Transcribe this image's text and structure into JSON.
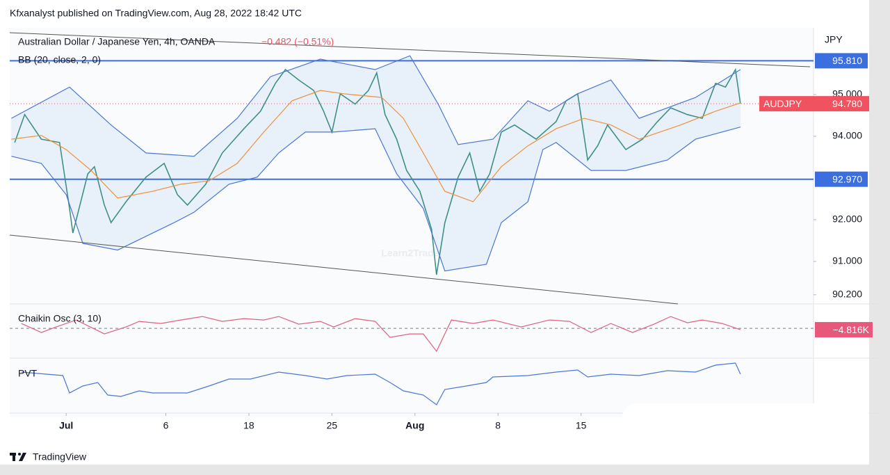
{
  "header": "Kfxanalyst published on TradingView.com, Aug 28, 2022 18:42 UTC",
  "footer": "TradingView",
  "chart_data": [
    {
      "type": "line",
      "title": "Australian Dollar / Japanese Yen, 4h, OANDA",
      "change": "−0.482 (−0.51%)",
      "indicator": "BB (20, close, 2, 0)",
      "y_unit": "JPY",
      "watermark": "Learn2Trade",
      "xlim": [
        -3.4,
        45
      ],
      "xticks": [
        {
          "value": 0,
          "label": "Jul"
        },
        6,
        {
          "value": 11,
          "label": "18"
        },
        {
          "value": 16,
          "label": "25"
        },
        {
          "value": 21,
          "label": "Aug"
        },
        {
          "value": 26,
          "label": "8"
        },
        {
          "value": 31,
          "label": "15"
        }
      ],
      "ylim": [
        89.98,
        96.6
      ],
      "yticks": [
        {
          "value": 90.2,
          "label": "90.200"
        },
        {
          "value": 91,
          "label": "91.000"
        },
        {
          "value": 92,
          "label": "92.000"
        },
        {
          "value": 94,
          "label": "94.000"
        },
        {
          "value": 95,
          "label": "95.000"
        }
      ],
      "hlines": [
        {
          "value": 95.81,
          "label": "95.810"
        },
        {
          "value": 92.97,
          "label": "92.970"
        }
      ],
      "hline_color": "#3b6fe0",
      "last_price": {
        "name": "AUDJPY",
        "value": 94.78,
        "label": "94.780",
        "color": "#f0525f"
      },
      "band_fill": "#e3eef8",
      "series": [
        {
          "name": "AUDJPY",
          "color": "#3f8f87",
          "x": [
            -3.1,
            -2.5,
            -1.5,
            -0.4,
            0.2,
            0.4,
            1.3,
            1.7,
            2.3,
            2.7,
            3.6,
            4.8,
            5.9,
            6.7,
            7.3,
            8.4,
            9.4,
            10.7,
            11.7,
            12.6,
            13.2,
            14.0,
            14.9,
            15.5,
            16.0,
            16.5,
            17.4,
            18.2,
            18.7,
            19.2,
            19.9,
            20.5,
            21.3,
            22.0,
            22.3,
            22.8,
            23.6,
            24.3,
            24.9,
            25.5,
            26.2,
            27.0,
            28.3,
            29.5,
            30.1,
            30.8,
            31.4,
            32.0,
            32.6,
            33.7,
            34.7,
            35.6,
            36.4,
            37.4,
            38.3,
            39.1,
            39.7,
            40.3,
            40.6
          ],
          "values": [
            93.85,
            94.52,
            93.93,
            93.85,
            92.27,
            91.68,
            93.1,
            93.27,
            92.35,
            91.93,
            92.43,
            93.02,
            93.35,
            92.6,
            92.35,
            92.85,
            93.6,
            94.18,
            94.6,
            95.27,
            95.6,
            95.35,
            95.1,
            94.6,
            94.1,
            95.02,
            94.77,
            95.1,
            95.52,
            94.52,
            93.93,
            93.18,
            92.68,
            91.77,
            90.68,
            91.93,
            93.02,
            93.6,
            92.68,
            93.1,
            94.1,
            94.27,
            93.93,
            94.35,
            94.85,
            95.02,
            93.43,
            93.77,
            94.27,
            93.68,
            93.93,
            94.35,
            94.68,
            94.52,
            94.43,
            95.27,
            95.18,
            95.6,
            94.78
          ]
        },
        {
          "color": "#4a76d6",
          "x": [
            -3.3,
            0.2,
            2.7,
            4.8,
            7.7,
            10.3,
            12.3,
            15.3,
            18.6,
            20.7,
            22.4,
            23.6,
            25.7,
            27.8,
            29.1,
            30.8,
            32.8,
            34.5,
            37.9,
            40.6
          ],
          "values": [
            94.43,
            95.18,
            94.27,
            93.6,
            93.52,
            94.43,
            95.43,
            95.85,
            95.6,
            95.93,
            94.77,
            93.8,
            93.93,
            94.85,
            94.6,
            95.02,
            95.35,
            94.43,
            94.93,
            95.6
          ]
        },
        {
          "color": "#f0903a",
          "x": [
            -3.3,
            -1.5,
            0,
            1.5,
            3.1,
            5.2,
            6.9,
            8.6,
            10.3,
            11.9,
            13.6,
            15.3,
            16.7,
            19.0,
            20.3,
            21.5,
            22.8,
            24.5,
            26.2,
            27.8,
            29.5,
            31.2,
            32.8,
            34.5,
            37.0,
            39.1,
            40.6
          ],
          "values": [
            93.93,
            94.02,
            93.68,
            93.18,
            92.52,
            92.68,
            92.85,
            92.93,
            93.35,
            94.1,
            94.85,
            95.1,
            95.02,
            94.93,
            94.43,
            93.6,
            92.68,
            92.43,
            93.27,
            93.77,
            94.18,
            94.43,
            94.27,
            93.93,
            94.27,
            94.6,
            94.8
          ]
        },
        {
          "color": "#4a76d6",
          "x": [
            -3.3,
            -1.5,
            0,
            1.0,
            3.1,
            4.8,
            6.5,
            7.7,
            9.8,
            11.5,
            12.8,
            14.4,
            16.1,
            18.6,
            19.9,
            21.5,
            22.8,
            25.3,
            26.2,
            27.8,
            28.7,
            29.5,
            31.6,
            33.7,
            36.2,
            37.9,
            40.6
          ],
          "values": [
            93.52,
            93.35,
            92.6,
            91.43,
            91.27,
            91.6,
            91.93,
            92.18,
            92.85,
            93.02,
            93.6,
            94.1,
            94.1,
            94.18,
            93.1,
            92.27,
            90.77,
            90.93,
            91.93,
            92.43,
            93.68,
            93.85,
            93.18,
            93.18,
            93.43,
            93.93,
            94.22
          ]
        }
      ]
    },
    {
      "type": "line",
      "title": "Chaikin Osc (3, 10)",
      "ylim": [
        -103,
        77
      ],
      "last_label": "−4.816K",
      "label_color": "#e8587a",
      "series": [
        {
          "color": "#e0607e",
          "x": [
            -2.7,
            -1.5,
            -0.6,
            0.6,
            2.3,
            3.6,
            4.4,
            5.7,
            6.9,
            8.2,
            9.4,
            10.7,
            11.9,
            12.8,
            14.0,
            15.3,
            16.1,
            17.4,
            18.6,
            19.5,
            20.7,
            21.5,
            22.3,
            23.2,
            24.5,
            25.7,
            27.4,
            29.1,
            30.3,
            31.6,
            32.8,
            34.1,
            35.4,
            36.4,
            37.4,
            38.3,
            39.5,
            40.6
          ],
          "values": [
            16.8,
            -14.4,
            4.8,
            28.8,
            -19.2,
            4.8,
            24,
            16.8,
            28.8,
            40.8,
            24,
            33.6,
            28.8,
            40.8,
            14.4,
            24,
            4.8,
            33.6,
            24,
            -31.2,
            -19.2,
            -19.2,
            -79.2,
            28.8,
            16.8,
            28.8,
            4.8,
            28.8,
            24,
            -14.4,
            16.8,
            -14.4,
            14.4,
            40.8,
            19.2,
            28.8,
            16.8,
            -4.816
          ]
        }
      ]
    },
    {
      "type": "line",
      "title": "PVT",
      "ylim": [
        -30,
        40
      ],
      "series": [
        {
          "color": "#4a76d6",
          "x": [
            -2.7,
            -0.2,
            0.2,
            1.0,
            1.9,
            2.5,
            3.3,
            4.4,
            5.2,
            6.5,
            7.3,
            8.6,
            9.8,
            11.1,
            12.8,
            14.4,
            15.7,
            16.9,
            18.6,
            19.5,
            20.3,
            21.5,
            22.3,
            22.8,
            24.1,
            25.3,
            25.7,
            27.8,
            29.5,
            30.8,
            31.4,
            32.8,
            34.5,
            36.2,
            37.9,
            39.1,
            40.3,
            40.6
          ],
          "values": [
            25,
            20,
            -5,
            5,
            10,
            -8,
            -10,
            -2,
            -5,
            -5,
            -5,
            5,
            15,
            15,
            25,
            20,
            15,
            20,
            22,
            10,
            -2,
            -8,
            -22,
            0,
            5,
            10,
            18,
            20,
            25,
            28,
            18,
            22,
            20,
            27,
            25,
            35,
            38,
            22
          ]
        }
      ]
    }
  ]
}
